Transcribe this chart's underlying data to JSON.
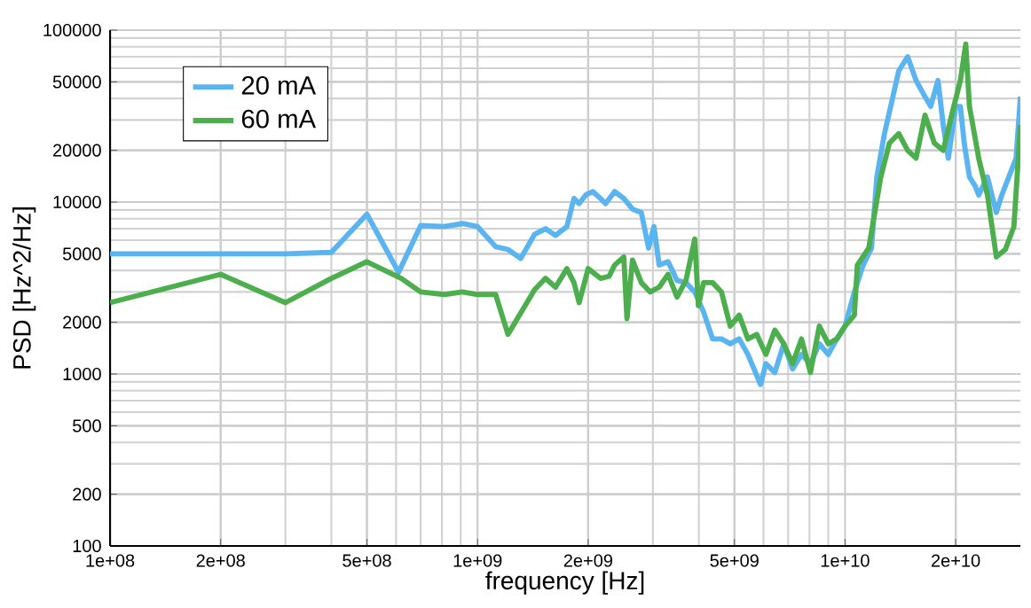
{
  "chart_data": {
    "type": "line",
    "xlabel": "frequency [Hz]",
    "ylabel": "PSD [Hz^2/Hz]",
    "log": "xy",
    "grid": true,
    "legend": "top left",
    "xlim": [
      100000000.0,
      30000000000.0
    ],
    "ylim": [
      100,
      100000
    ],
    "xticks": [
      {
        "value": 100000000.0,
        "label": "1e+08"
      },
      {
        "value": 200000000.0,
        "label": "2e+08"
      },
      {
        "value": 500000000.0,
        "label": "5e+08"
      },
      {
        "value": 1000000000.0,
        "label": "1e+09"
      },
      {
        "value": 2000000000.0,
        "label": "2e+09"
      },
      {
        "value": 5000000000.0,
        "label": "5e+09"
      },
      {
        "value": 10000000000.0,
        "label": "1e+10"
      },
      {
        "value": 20000000000.0,
        "label": "2e+10"
      }
    ],
    "yticks": [
      100,
      200,
      500,
      1000,
      2000,
      5000,
      10000,
      20000,
      50000,
      100000
    ],
    "series": [
      {
        "name": "20 mA",
        "color": "#5ab4f0",
        "x": [
          100000000.0,
          300000000.0,
          400000000.0,
          500000000.0,
          610000000.0,
          700000000.0,
          810000000.0,
          910000000.0,
          1000000000.0,
          1120000000.0,
          1210000000.0,
          1310000000.0,
          1430000000.0,
          1530000000.0,
          1630000000.0,
          1750000000.0,
          1830000000.0,
          1890000000.0,
          1970000000.0,
          2060000000.0,
          2160000000.0,
          2230000000.0,
          2360000000.0,
          2500000000.0,
          2640000000.0,
          2790000000.0,
          2920000000.0,
          3020000000.0,
          3120000000.0,
          3300000000.0,
          3490000000.0,
          3690000000.0,
          3900000000.0,
          4120000000.0,
          4360000000.0,
          4610000000.0,
          4870000000.0,
          5150000000.0,
          5440000000.0,
          5750000000.0,
          5890000000.0,
          6090000000.0,
          6440000000.0,
          6810000000.0,
          7200000000.0,
          7610000000.0,
          8050000000.0,
          8510000000.0,
          9000000000.0,
          9500000000.0,
          10000000000.0,
          10600000000.0,
          11200000000.0,
          11800000000.0,
          12200000000.0,
          12800000000.0,
          14000000000.0,
          14800000000.0,
          15600000000.0,
          16500000000.0,
          17100000000.0,
          17900000000.0,
          18500000000.0,
          19100000000.0,
          20000000000.0,
          20600000000.0,
          21100000000.0,
          21800000000.0,
          22600000000.0,
          23100000000.0,
          24400000000.0,
          25800000000.0,
          26700000000.0,
          27900000000.0,
          29200000000.0,
          30000000000.0
        ],
        "values": [
          5000,
          5000,
          5100,
          8500,
          3900,
          7300,
          7200,
          7500,
          7200,
          5500,
          5300,
          4700,
          6500,
          7000,
          6400,
          7200,
          10500,
          9800,
          11000,
          11500,
          10500,
          9800,
          11500,
          10500,
          9100,
          8700,
          5400,
          7200,
          4300,
          4500,
          3500,
          3400,
          3000,
          2300,
          1600,
          1600,
          1500,
          1600,
          1300,
          980,
          870,
          1150,
          1020,
          1500,
          1070,
          1300,
          1150,
          1500,
          1300,
          1600,
          1900,
          3000,
          4300,
          5400,
          14000,
          25000,
          58000,
          70000,
          51000,
          41000,
          36000,
          51000,
          28000,
          18000,
          36000,
          36000,
          22000,
          14000,
          12400,
          11000,
          14000,
          8700,
          11000,
          14000,
          18000,
          41000
        ]
      },
      {
        "name": "60 mA",
        "color": "#4cae4c",
        "x": [
          100000000.0,
          200000000.0,
          300000000.0,
          400000000.0,
          500000000.0,
          620000000.0,
          700000000.0,
          810000000.0,
          910000000.0,
          1000000000.0,
          1120000000.0,
          1210000000.0,
          1430000000.0,
          1530000000.0,
          1630000000.0,
          1750000000.0,
          1830000000.0,
          1890000000.0,
          2000000000.0,
          2160000000.0,
          2280000000.0,
          2360000000.0,
          2500000000.0,
          2550000000.0,
          2640000000.0,
          2790000000.0,
          2950000000.0,
          3120000000.0,
          3300000000.0,
          3490000000.0,
          3690000000.0,
          3900000000.0,
          3990000000.0,
          4120000000.0,
          4360000000.0,
          4610000000.0,
          4870000000.0,
          5150000000.0,
          5440000000.0,
          5750000000.0,
          6090000000.0,
          6440000000.0,
          6810000000.0,
          7200000000.0,
          7610000000.0,
          8050000000.0,
          8510000000.0,
          9000000000.0,
          9500000000.0,
          10000000000.0,
          10600000000.0,
          10800000000.0,
          11600000000.0,
          12500000000.0,
          13200000000.0,
          14000000000.0,
          14800000000.0,
          15600000000.0,
          16500000000.0,
          17500000000.0,
          18500000000.0,
          19500000000.0,
          20600000000.0,
          21300000000.0,
          21800000000.0,
          23100000000.0,
          24400000000.0,
          25800000000.0,
          27300000000.0,
          28800000000.0,
          30000000000.0
        ],
        "values": [
          2600,
          3800,
          2600,
          3600,
          4500,
          3600,
          3000,
          2900,
          3000,
          2900,
          2900,
          1700,
          3100,
          3600,
          3200,
          4100,
          3400,
          2600,
          4100,
          3600,
          3700,
          4300,
          4800,
          2100,
          4600,
          3400,
          3000,
          3200,
          3800,
          2800,
          3500,
          6100,
          2500,
          3400,
          3400,
          3000,
          1900,
          2200,
          1600,
          1700,
          1300,
          1800,
          1500,
          1150,
          1600,
          1020,
          1900,
          1500,
          1600,
          1900,
          2200,
          4300,
          5400,
          13900,
          22000,
          25000,
          20000,
          18000,
          32000,
          22000,
          20000,
          32000,
          51000,
          83000,
          36000,
          18000,
          11000,
          4800,
          5300,
          7200,
          28000
        ]
      }
    ]
  }
}
